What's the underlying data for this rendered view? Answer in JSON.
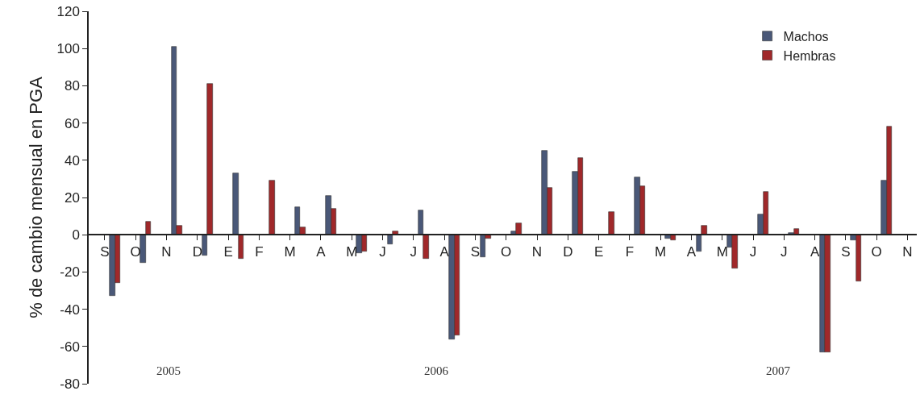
{
  "chart_data": {
    "type": "bar",
    "ylabel": "% de cambio mensual en PGA",
    "categories": [
      "S",
      "O",
      "N",
      "D",
      "E",
      "F",
      "M",
      "A",
      "M",
      "J",
      "J",
      "A",
      "S",
      "O",
      "N",
      "D",
      "E",
      "F",
      "M",
      "A",
      "M",
      "J",
      "J",
      "A",
      "S",
      "O",
      "N"
    ],
    "series": [
      {
        "name": "Machos",
        "color": "#4a5878",
        "values": [
          -33,
          -15,
          101,
          -11,
          33,
          null,
          15,
          21,
          -10,
          -5,
          13,
          -56,
          -12,
          2,
          45,
          34,
          null,
          31,
          -2,
          -9,
          -7,
          11,
          1,
          -63,
          -3,
          29,
          null
        ]
      },
      {
        "name": "Hembras",
        "color": "#a0282a",
        "values": [
          -26,
          7,
          5,
          81,
          -13,
          29,
          4,
          14,
          -9,
          2,
          -13,
          -54,
          -2,
          6,
          25,
          41,
          12,
          26,
          -3,
          5,
          -18,
          23,
          3,
          -63,
          -25,
          58,
          null
        ]
      }
    ],
    "ylim": [
      -80,
      120
    ],
    "yticks": [
      -80,
      -60,
      -40,
      -20,
      0,
      20,
      40,
      60,
      80,
      100,
      120
    ],
    "grid": false,
    "legend": "top right",
    "annotations": [
      "2005",
      "2006",
      "2007"
    ]
  }
}
